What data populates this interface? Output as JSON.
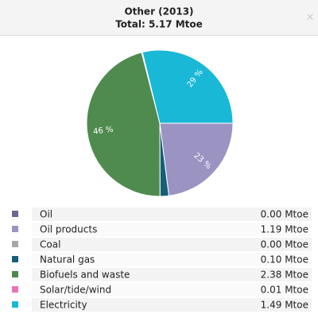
{
  "chart_data": {
    "type": "pie",
    "title": "Other (2013)",
    "subtitle": "Total: 5.17 Mtoe",
    "categories": [
      "Oil",
      "Oil products",
      "Coal",
      "Natural gas",
      "Biofuels and waste",
      "Solar/tide/wind",
      "Electricity"
    ],
    "values": [
      0,
      1.19,
      0,
      0.1,
      2.38,
      0.01,
      1.49
    ],
    "value_labels": [
      "0.00 Mtoe",
      "1.19 Mtoe",
      "0.00 Mtoe",
      "0.10 Mtoe",
      "2.38 Mtoe",
      "0.01 Mtoe",
      "1.49 Mtoe"
    ],
    "percent_labels": [
      null,
      "23 %",
      null,
      null,
      "46 %",
      null,
      "29 %"
    ],
    "colors": [
      "#6f6490",
      "#9b93c2",
      "#a8a8a8",
      "#175e78",
      "#4f8a4f",
      "#e874b4",
      "#19b8d6"
    ]
  }
}
